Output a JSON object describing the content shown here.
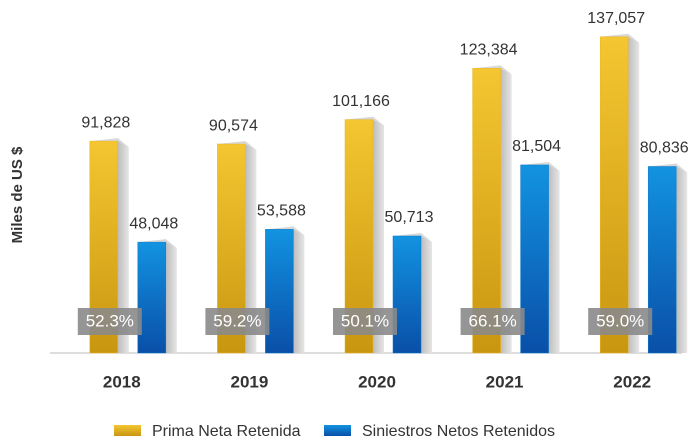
{
  "chart_data": {
    "type": "bar",
    "y_label": "Miles de US $",
    "categories": [
      "2018",
      "2019",
      "2020",
      "2021",
      "2022"
    ],
    "ylim": [
      0,
      140000
    ],
    "series": [
      {
        "name": "Prima Neta Retenida",
        "color": "#e8b422",
        "values": [
          91828,
          90574,
          101166,
          123384,
          137057
        ],
        "value_labels": [
          "91,828",
          "90,574",
          "101,166",
          "123,384",
          "137,057"
        ]
      },
      {
        "name": "Siniestros Netos Retenidos",
        "color": "#0a78c8",
        "values": [
          48048,
          53588,
          50713,
          81504,
          80836
        ],
        "value_labels": [
          "48,048",
          "53,588",
          "50,713",
          "81,504",
          "80,836"
        ]
      }
    ],
    "ratio": {
      "values": [
        52.3,
        59.2,
        50.1,
        66.1,
        59.0
      ],
      "value_labels": [
        "52.3%",
        "59.2%",
        "50.1%",
        "66.1%",
        "59.0%"
      ]
    }
  }
}
